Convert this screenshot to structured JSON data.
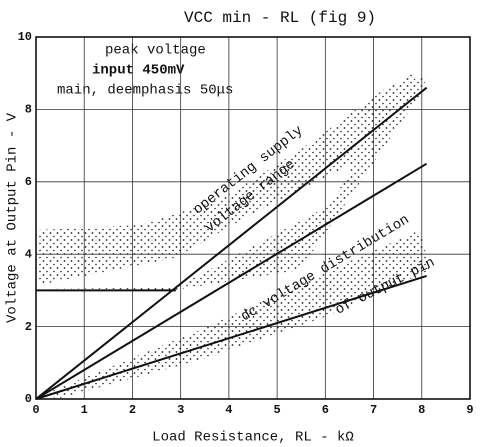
{
  "chart_data": {
    "type": "line",
    "title": "VCC min - RL (fig 9)",
    "xlabel": "Load Resistance, RL - kΩ",
    "ylabel": "Voltage at Output Pin - V",
    "annotations": [
      "peak voltage",
      "input 450mV",
      "main, deemphasis 50μs",
      "operating supply",
      "voltage range",
      "dc voltage distribution",
      "of output pin"
    ],
    "series": [
      {
        "color": "#111111",
        "x": [
          0,
          8.1
        ],
        "values": [
          0,
          8.6
        ]
      },
      {
        "color": "#111111",
        "x": [
          0,
          2.9
        ],
        "values": [
          3,
          3
        ]
      },
      {
        "color": "#111111",
        "x": [
          0,
          8.1
        ],
        "values": [
          0,
          6.5
        ]
      },
      {
        "color": "#111111",
        "x": [
          0,
          8.1
        ],
        "values": [
          0,
          3.4
        ]
      }
    ],
    "xlim": [
      0,
      9
    ],
    "xticks": [
      0,
      1,
      2,
      3,
      4,
      5,
      6,
      7,
      8,
      9
    ],
    "ylim": [
      0,
      10
    ],
    "yticks": [
      0,
      2,
      4,
      6,
      8,
      10
    ],
    "grid": true
  }
}
